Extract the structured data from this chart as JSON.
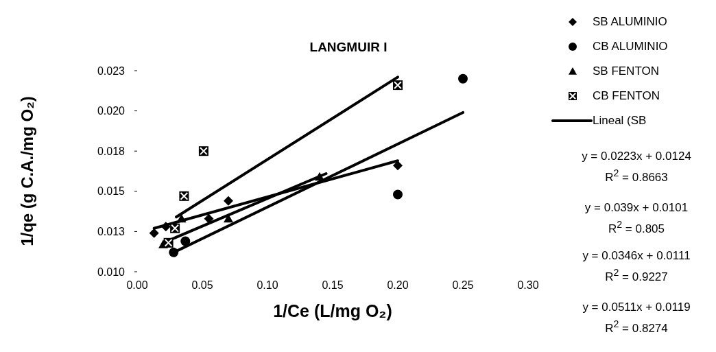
{
  "chart_data": {
    "type": "scatter",
    "title": "LANGMUIR I",
    "xlabel": "1/Ce (L/mg O₂)",
    "ylabel": "1/qe (g C.A./mg O₂)",
    "xlim": [
      0,
      0.3
    ],
    "xticks": [
      {
        "value": 0,
        "label": "0.00"
      },
      {
        "value": 0.05,
        "label": "0.05"
      },
      {
        "value": 0.1,
        "label": "0.10"
      },
      {
        "value": 0.15,
        "label": "0.15"
      },
      {
        "value": 0.2,
        "label": "0.20"
      },
      {
        "value": 0.25,
        "label": "0.25"
      },
      {
        "value": 0.3,
        "label": "0.30"
      }
    ],
    "ylim": [
      0.01,
      0.0225
    ],
    "yticks": [
      {
        "value": 0.01,
        "label": "0.010"
      },
      {
        "value": 0.0125,
        "label": "0.013"
      },
      {
        "value": 0.015,
        "label": "0.015"
      },
      {
        "value": 0.0175,
        "label": "0.018"
      },
      {
        "value": 0.02,
        "label": "0.020"
      },
      {
        "value": 0.0225,
        "label": "0.023"
      }
    ],
    "grid": false,
    "legend": "right",
    "line_style": "solid",
    "series": [
      {
        "name": "SB ALUMINIO",
        "marker": "diamond",
        "color": "#000000",
        "x": [
          0.013,
          0.022,
          0.055,
          0.07,
          0.2
        ],
        "values": [
          0.0124,
          0.0128,
          0.0133,
          0.0144,
          0.0166
        ]
      },
      {
        "name": "CB ALUMINIO",
        "marker": "circle",
        "color": "#000000",
        "x": [
          0.028,
          0.037,
          0.2,
          0.25
        ],
        "values": [
          0.0112,
          0.0119,
          0.0148,
          0.022
        ]
      },
      {
        "name": "SB FENTON",
        "marker": "triangle",
        "color": "#000000",
        "x": [
          0.02,
          0.034,
          0.07,
          0.14
        ],
        "values": [
          0.0117,
          0.0133,
          0.0133,
          0.0159
        ]
      },
      {
        "name": "CB FENTON",
        "marker": "square",
        "color": "#000000",
        "x": [
          0.024,
          0.029,
          0.036,
          0.051,
          0.2
        ],
        "values": [
          0.0118,
          0.0127,
          0.0147,
          0.0175,
          0.0216
        ]
      },
      {
        "name": "Lineal (SB",
        "type": "line",
        "marker": "none",
        "color": "#000000",
        "x": [
          0.013,
          0.2
        ],
        "values": [
          0.0127,
          0.0169
        ]
      },
      {
        "type": "line",
        "marker": "none",
        "color": "#000000",
        "x": [
          0.028,
          0.25
        ],
        "values": [
          0.0112,
          0.0199
        ]
      },
      {
        "type": "line",
        "marker": "none",
        "color": "#000000",
        "x": [
          0.02,
          0.145
        ],
        "values": [
          0.0118,
          0.0161
        ]
      },
      {
        "type": "line",
        "marker": "none",
        "color": "#000000",
        "x": [
          0.03,
          0.2
        ],
        "values": [
          0.0134,
          0.0221
        ]
      }
    ],
    "annotations": [
      "y = 0.0223x + 0.0124",
      "R$^{2}$ = 0.8663",
      "y = 0.039x + 0.0101",
      "R$^{2}$ = 0.805",
      "y = 0.0346x + 0.0111",
      "R$^{2}$ = 0.9227",
      "y = 0.0511x + 0.0119",
      "R$^{2}$ = 0.8274"
    ]
  }
}
